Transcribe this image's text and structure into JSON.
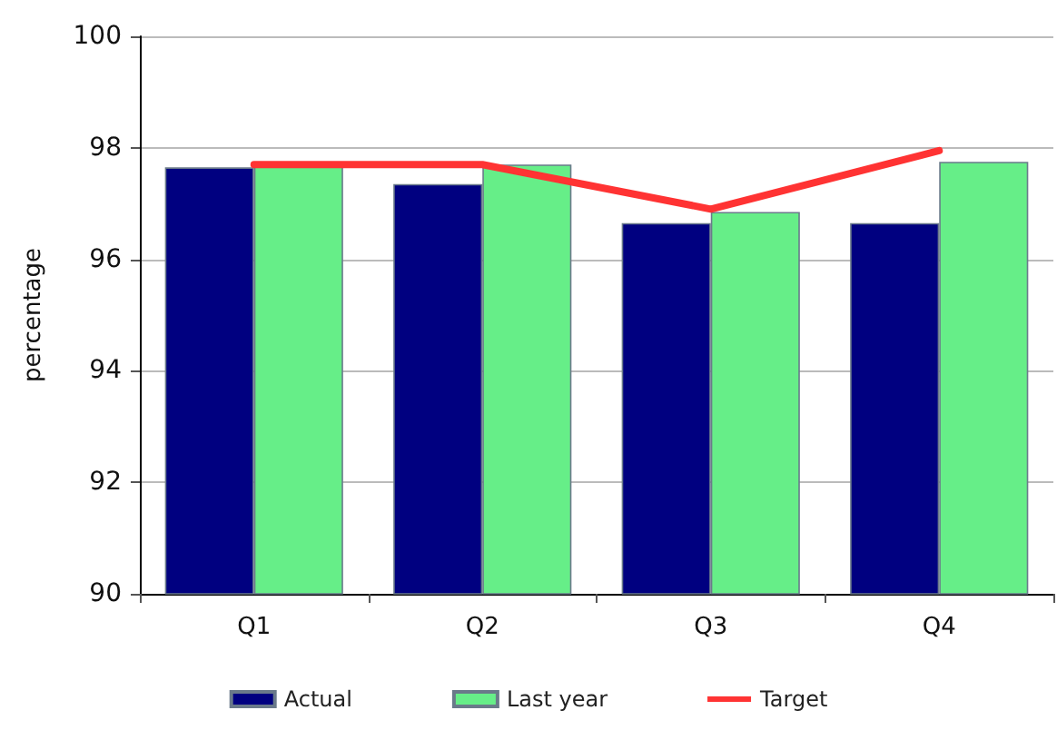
{
  "chart_data": {
    "type": "bar",
    "ylabel": "percentage",
    "categories": [
      "Q1",
      "Q2",
      "Q3",
      "Q4"
    ],
    "series": [
      {
        "name": "Actual",
        "color": "#000080",
        "values": [
          97.65,
          97.35,
          96.65,
          96.65
        ]
      },
      {
        "name": "Last year",
        "color": "#66ee88",
        "values": [
          97.7,
          97.7,
          96.85,
          97.75
        ]
      },
      {
        "name": "Target",
        "type": "line",
        "color": "#ff3333",
        "values": [
          97.7,
          97.7,
          96.9,
          97.95
        ]
      }
    ],
    "ylim": [
      90,
      100
    ],
    "yticks": [
      90,
      92,
      94,
      96,
      98,
      100
    ],
    "grid": "y",
    "legend": "bottom",
    "marker": "none",
    "line_style": "solid"
  }
}
